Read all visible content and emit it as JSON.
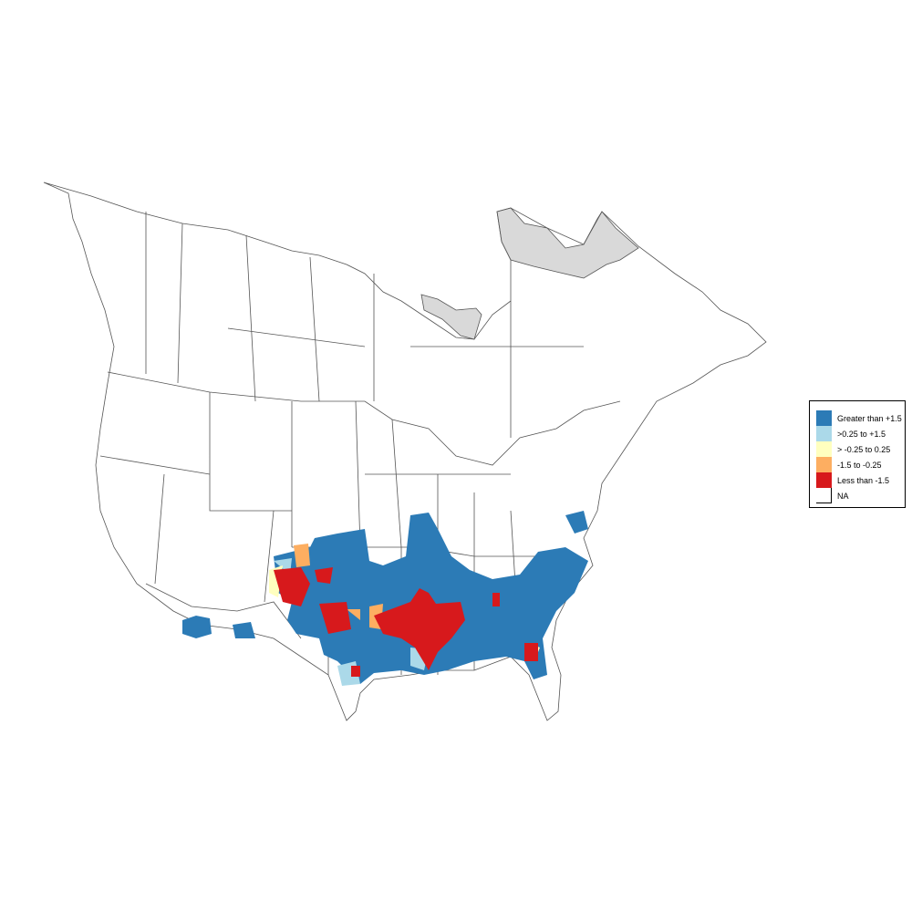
{
  "legend": {
    "items": [
      {
        "label": "Greater than +1.5",
        "color": "#2c7bb6"
      },
      {
        "label": ">0.25 to +1.5",
        "color": "#abd9e9"
      },
      {
        "label": "> -0.25 to 0.25",
        "color": "#ffffbf"
      },
      {
        "label": "-1.5 to -0.25",
        "color": "#fdae61"
      },
      {
        "label": "Less than -1.5",
        "color": "#d7191c"
      },
      {
        "label": "NA",
        "color": "#ffffff"
      }
    ]
  },
  "colors": {
    "boundary": "#555555",
    "no_data_region": "#d9d9d9"
  }
}
